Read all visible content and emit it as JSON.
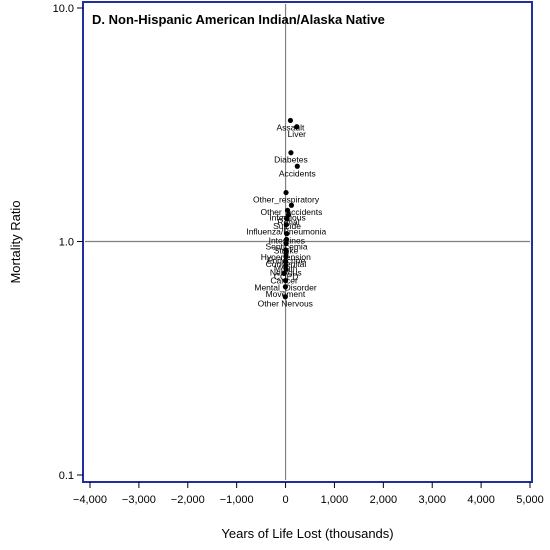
{
  "chart_data": {
    "type": "scatter",
    "title": "D. Non-Hispanic American Indian/Alaska Native",
    "xlabel": "Years of Life Lost (thousands)",
    "ylabel": "Mortality Ratio",
    "xlim": [
      -4000,
      5000
    ],
    "ylim": [
      0.1,
      10.0
    ],
    "yscale": "log",
    "xticks": [
      -4000,
      -3000,
      -2000,
      -1000,
      0,
      1000,
      2000,
      3000,
      4000,
      5000
    ],
    "xtick_labels": [
      "−4,000",
      "−3,000",
      "−2,000",
      "−1,000",
      "0",
      "1,000",
      "2,000",
      "3,000",
      "4,000",
      "5,000"
    ],
    "yticks": [
      0.1,
      1.0,
      10.0
    ],
    "ytick_labels": [
      "0.1",
      "1.0",
      "10.0"
    ],
    "reference_lines": {
      "x": 0,
      "y": 1.0
    },
    "grid": false,
    "legend": "none",
    "colors": {
      "frame": "#1f2f9e",
      "reference": "#808080",
      "point": "#000000"
    },
    "points": [
      {
        "label": "Assault",
        "x": 100,
        "y": 3.3
      },
      {
        "label": "Liver",
        "x": 230,
        "y": 3.1
      },
      {
        "label": "Diabetes",
        "x": 110,
        "y": 2.4
      },
      {
        "label": "Accidents",
        "x": 240,
        "y": 2.1
      },
      {
        "label": "Other_respiratory",
        "x": 10,
        "y": 1.62
      },
      {
        "label": "Other_accidents",
        "x": 120,
        "y": 1.43
      },
      {
        "label": "Infectious",
        "x": 40,
        "y": 1.36
      },
      {
        "label": "Renal",
        "x": 60,
        "y": 1.3
      },
      {
        "label": "Suicide",
        "x": 30,
        "y": 1.25
      },
      {
        "label": "Influenza/Pneumonia",
        "x": 15,
        "y": 1.18
      },
      {
        "label": "Intestines",
        "x": 25,
        "y": 1.08
      },
      {
        "label": "Septicemia",
        "x": 20,
        "y": 1.02
      },
      {
        "label": "Stroke",
        "x": 10,
        "y": 0.98
      },
      {
        "label": "Hypertension",
        "x": 5,
        "y": 0.92
      },
      {
        "label": "Endocrine",
        "x": 10,
        "y": 0.89
      },
      {
        "label": "Congenital",
        "x": 8,
        "y": 0.86
      },
      {
        "label": "Mouth",
        "x": 2,
        "y": 0.82
      },
      {
        "label": "Nervous",
        "x": 4,
        "y": 0.79
      },
      {
        "label": "COPD",
        "x": 12,
        "y": 0.76
      },
      {
        "label": "Cancer",
        "x": -30,
        "y": 0.73
      },
      {
        "label": "Mental_Disorder",
        "x": 0,
        "y": 0.68
      },
      {
        "label": "Movement",
        "x": -3,
        "y": 0.64
      },
      {
        "label": "Other Nervous",
        "x": -5,
        "y": 0.58
      }
    ]
  }
}
